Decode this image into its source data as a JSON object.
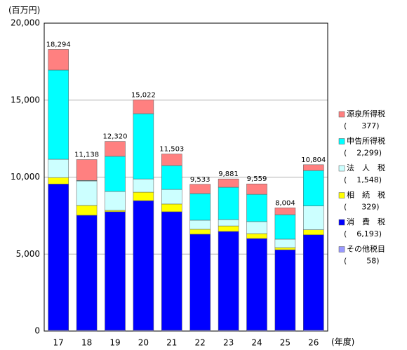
{
  "chart_data": {
    "type": "stacked_bar",
    "y_label": "(百万円)",
    "x_label": "(年度)",
    "categories": [
      "17",
      "18",
      "19",
      "20",
      "21",
      "22",
      "23",
      "24",
      "25",
      "26"
    ],
    "ylim": [
      0,
      20000
    ],
    "yticks": [
      0,
      {
        "value": 5000,
        "label": "5,000"
      },
      {
        "value": 10000,
        "label": "10,000"
      },
      {
        "value": 15000,
        "label": "15,000"
      },
      {
        "value": 20000,
        "label": "20,000"
      }
    ],
    "grid": true,
    "series": [
      {
        "name": "その他税目",
        "legend_label": "(        58)",
        "color": "#9999ff",
        "values": [
          50,
          50,
          50,
          50,
          50,
          50,
          50,
          50,
          50,
          58
        ]
      },
      {
        "name": "消　費　税",
        "legend_label": "(    6,193)",
        "color": "#0000ff",
        "values": [
          9500,
          7470,
          7700,
          8420,
          7700,
          6240,
          6420,
          5960,
          5230,
          6193
        ]
      },
      {
        "name": "相　続　税",
        "legend_label": "(      329)",
        "color": "#ffff00",
        "values": [
          420,
          640,
          90,
          550,
          500,
          320,
          360,
          320,
          140,
          329
        ]
      },
      {
        "name": "法　人　税",
        "legend_label": "(    1,548)",
        "color": "#ccffff",
        "values": [
          1190,
          1590,
          1230,
          860,
          950,
          590,
          410,
          780,
          550,
          1548
        ]
      },
      {
        "name": "申告所得税",
        "legend_label": "(    2,299)",
        "color": "#00ffff",
        "values": [
          5790,
          30,
          2280,
          4240,
          1550,
          1730,
          2100,
          1770,
          1590,
          2299
        ]
      },
      {
        "name": "源泉所得税",
        "legend_label": "(      377)",
        "color": "#ff8080",
        "values": [
          1344,
          1358,
          970,
          902,
          753,
          603,
          541,
          679,
          444,
          377
        ]
      }
    ],
    "totals": [
      18294,
      11138,
      12320,
      15022,
      11503,
      9533,
      9881,
      9559,
      8004,
      10804
    ],
    "total_labels": [
      "18,294",
      "11,138",
      "12,320",
      "15,022",
      "11,503",
      "9,533",
      "9,881",
      "9,559",
      "8,004",
      "10,804"
    ]
  }
}
